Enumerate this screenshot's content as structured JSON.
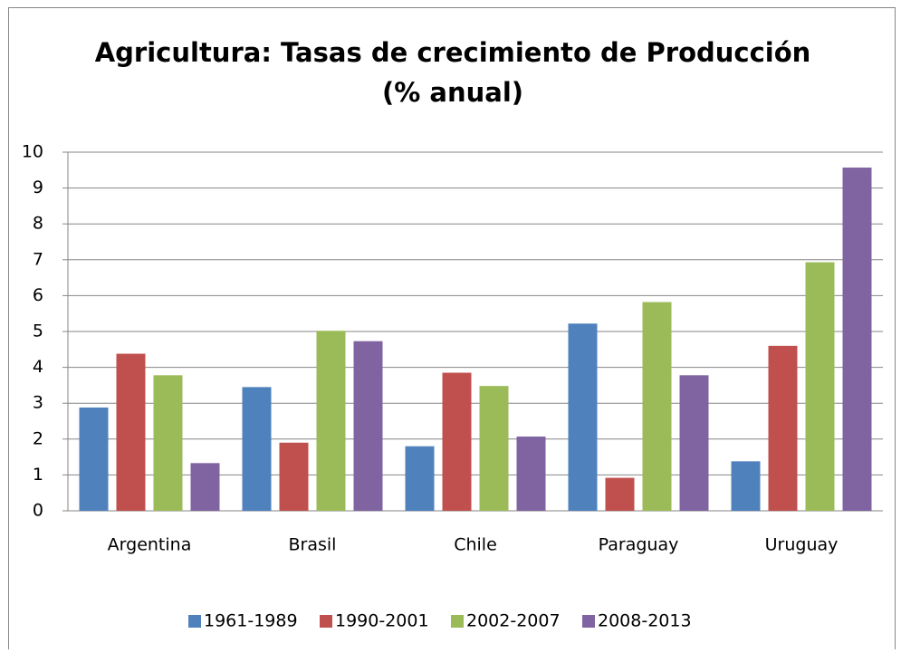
{
  "chart_data": {
    "type": "bar",
    "title": [
      "Agricultura: Tasas de crecimiento de Producción",
      "(% anual)"
    ],
    "categories": [
      "Argentina",
      "Brasil",
      "Chile",
      "Paraguay",
      "Uruguay"
    ],
    "series": [
      {
        "name": "1961-1989",
        "color": "#4f81bd",
        "values": [
          2.88,
          3.45,
          1.8,
          5.22,
          1.38
        ]
      },
      {
        "name": "1990-2001",
        "color": "#c0504d",
        "values": [
          4.38,
          1.9,
          3.85,
          0.92,
          4.6
        ]
      },
      {
        "name": "2002-2007",
        "color": "#9bbb59",
        "values": [
          3.78,
          5.02,
          3.48,
          5.82,
          6.93
        ]
      },
      {
        "name": "2008-2013",
        "color": "#8064a2",
        "values": [
          1.33,
          4.73,
          2.07,
          3.78,
          9.57
        ]
      }
    ],
    "ylim": [
      0,
      10
    ],
    "yticks": [
      0,
      1,
      2,
      3,
      4,
      5,
      6,
      7,
      8,
      9,
      10
    ],
    "grid": true,
    "legend": "bottom"
  }
}
